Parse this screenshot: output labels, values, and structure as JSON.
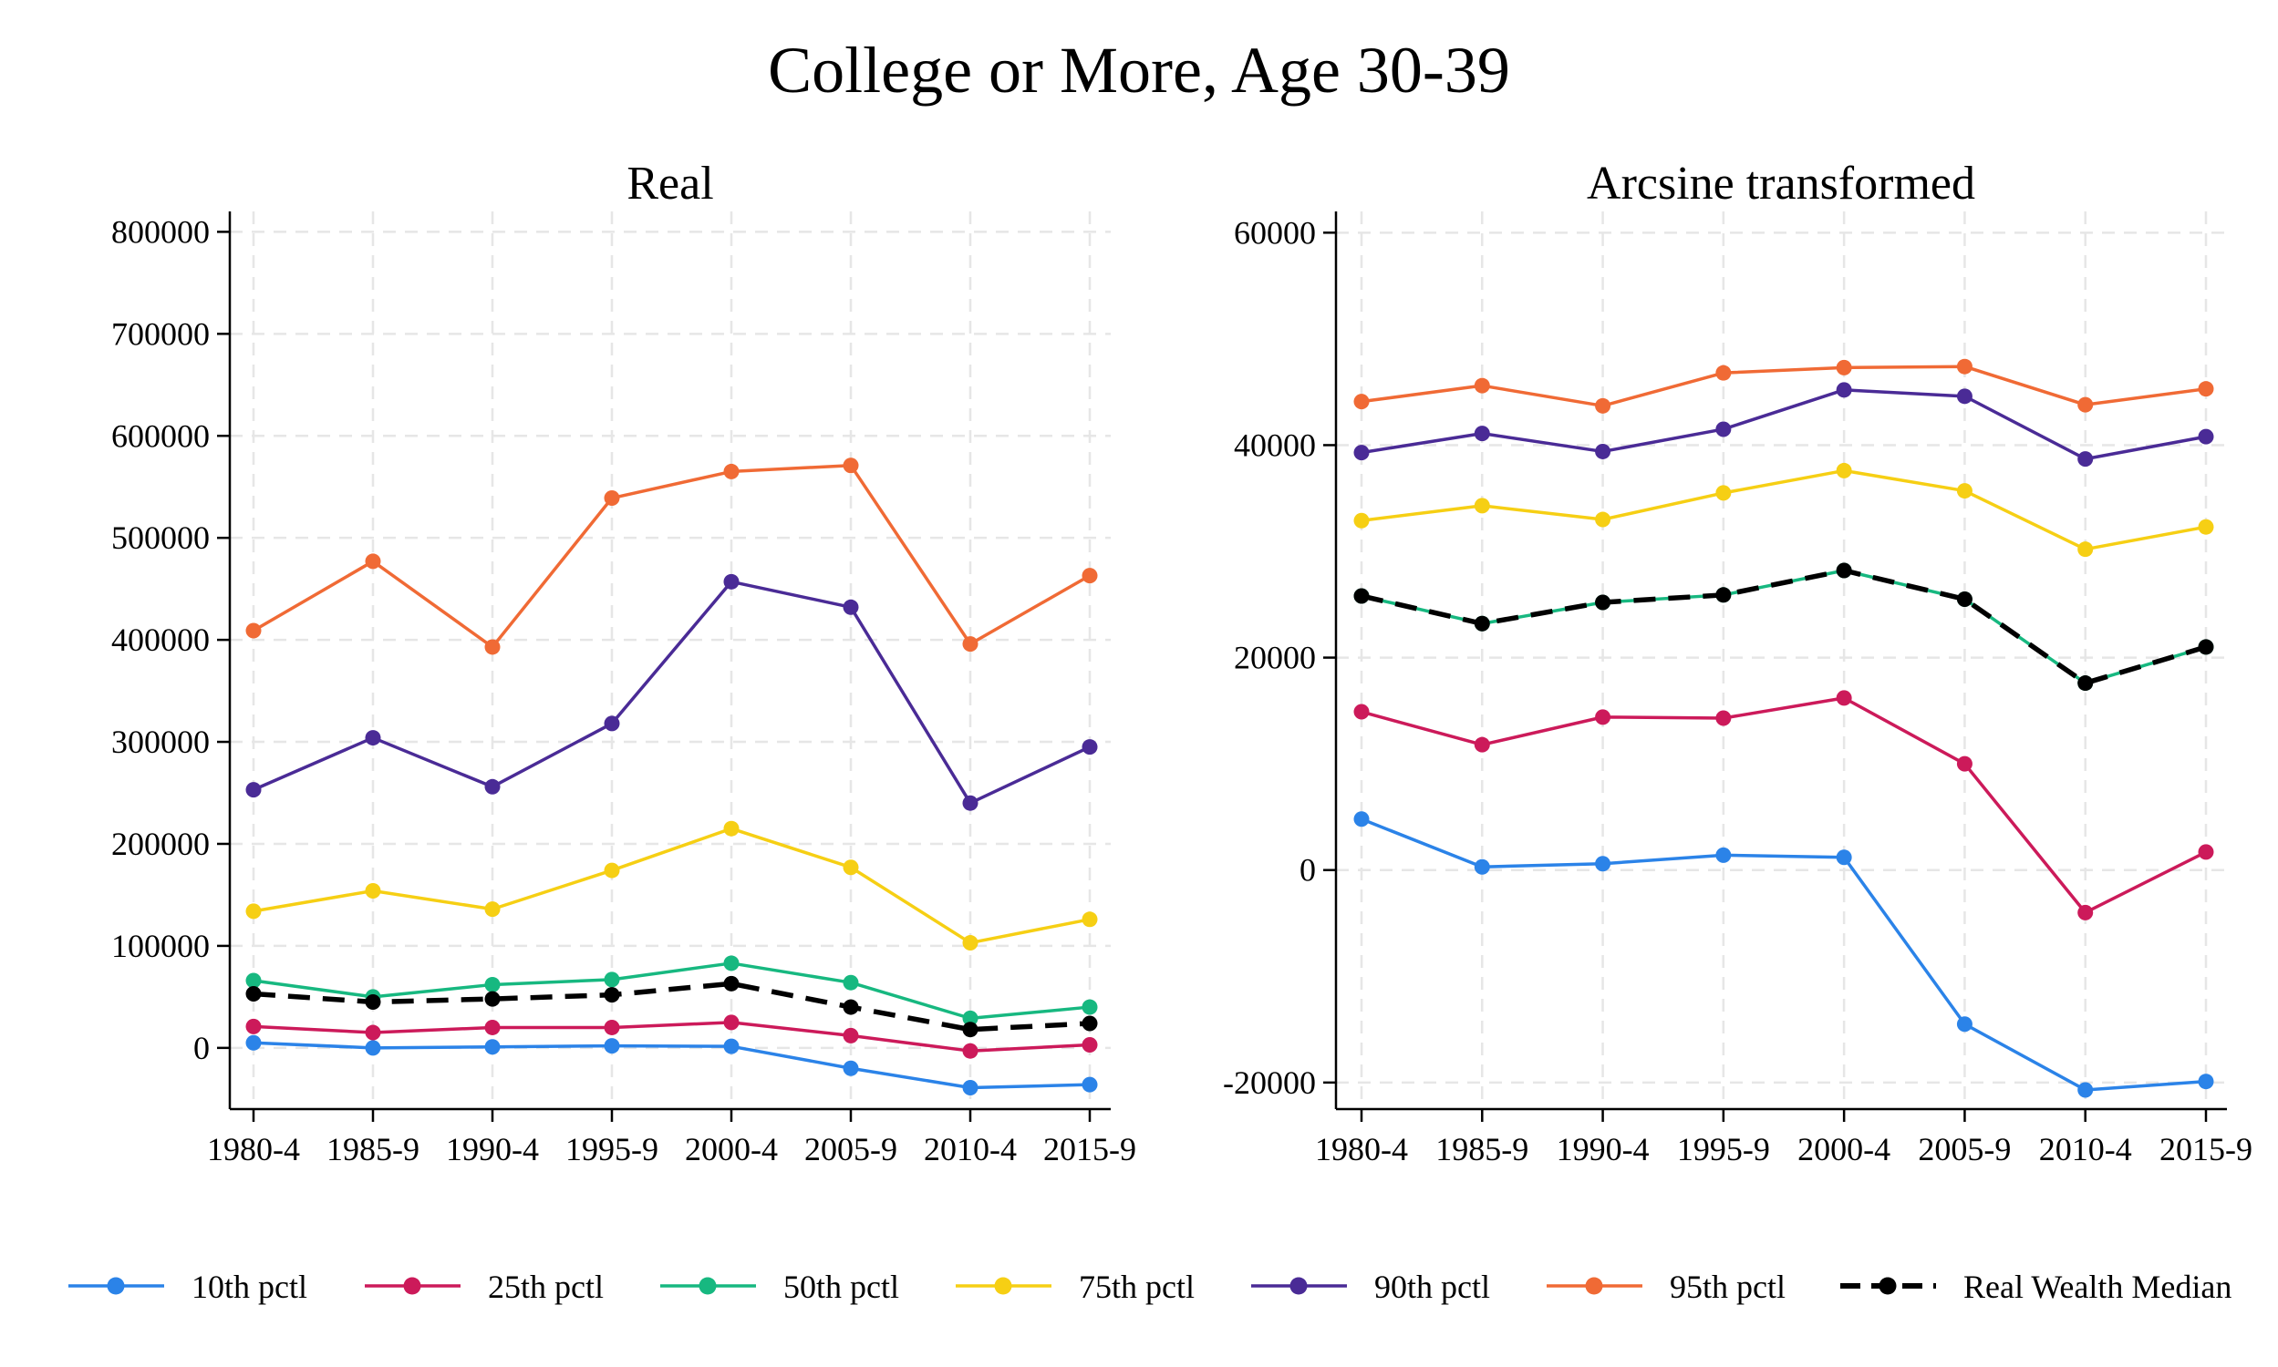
{
  "title": "College or More, Age 30-39",
  "chart_data": [
    {
      "type": "line",
      "title": "Real",
      "x": [
        "1980-4",
        "1985-9",
        "1990-4",
        "1995-9",
        "2000-4",
        "2005-9",
        "2010-4",
        "2015-9"
      ],
      "ylim": [
        -60000,
        820000
      ],
      "yticks": [
        0,
        100000,
        200000,
        300000,
        400000,
        500000,
        600000,
        700000,
        800000
      ],
      "ytick_labels": [
        "0",
        "100000",
        "200000",
        "300000",
        "400000",
        "500000",
        "600000",
        "700000",
        "800000"
      ],
      "grid": true,
      "series": [
        {
          "name": "10th pctl",
          "color": "#2b83e8",
          "dash": false,
          "values": [
            5000,
            0,
            1000,
            2000,
            1500,
            -20000,
            -39000,
            -36000
          ]
        },
        {
          "name": "25th pctl",
          "color": "#cc1a5a",
          "dash": false,
          "values": [
            21000,
            15000,
            20000,
            20000,
            25000,
            12000,
            -3000,
            3000
          ]
        },
        {
          "name": "50th pctl",
          "color": "#17b880",
          "dash": false,
          "values": [
            66000,
            50000,
            62000,
            67000,
            83000,
            64000,
            29000,
            40000
          ]
        },
        {
          "name": "75th pctl",
          "color": "#f6cf14",
          "dash": false,
          "values": [
            134000,
            154000,
            136000,
            174000,
            215000,
            177000,
            103000,
            126000
          ]
        },
        {
          "name": "90th pctl",
          "color": "#4a2b96",
          "dash": false,
          "values": [
            253000,
            304000,
            256000,
            318000,
            457000,
            432000,
            240000,
            295000
          ]
        },
        {
          "name": "95th pctl",
          "color": "#f06a35",
          "dash": false,
          "values": [
            409000,
            477000,
            393000,
            539000,
            565000,
            571000,
            396000,
            463000
          ]
        },
        {
          "name": "Real Wealth Median",
          "color": "#000000",
          "dash": true,
          "values": [
            53000,
            45000,
            48000,
            52000,
            63000,
            40000,
            18000,
            24000
          ]
        }
      ]
    },
    {
      "type": "line",
      "title": "Arcsine transformed",
      "x": [
        "1980-4",
        "1985-9",
        "1990-4",
        "1995-9",
        "2000-4",
        "2005-9",
        "2010-4",
        "2015-9"
      ],
      "ylim": [
        -22500,
        62000
      ],
      "yticks": [
        -20000,
        0,
        20000,
        40000,
        60000
      ],
      "ytick_labels": [
        "-20000",
        "0",
        "20000",
        "40000",
        "60000"
      ],
      "grid": true,
      "series": [
        {
          "name": "10th pctl",
          "color": "#2b83e8",
          "dash": false,
          "values": [
            4800,
            300,
            600,
            1400,
            1200,
            -14500,
            -20700,
            -19900
          ]
        },
        {
          "name": "25th pctl",
          "color": "#cc1a5a",
          "dash": false,
          "values": [
            14900,
            11800,
            14400,
            14300,
            16200,
            10000,
            -4000,
            1700
          ]
        },
        {
          "name": "50th pctl",
          "color": "#17b880",
          "dash": false,
          "values": [
            25800,
            23200,
            25200,
            25900,
            28200,
            25500,
            17600,
            21000
          ]
        },
        {
          "name": "75th pctl",
          "color": "#f6cf14",
          "dash": false,
          "values": [
            32900,
            34300,
            33000,
            35500,
            37600,
            35700,
            30200,
            32300
          ]
        },
        {
          "name": "90th pctl",
          "color": "#4a2b96",
          "dash": false,
          "values": [
            39300,
            41100,
            39400,
            41500,
            45200,
            44600,
            38700,
            40800
          ]
        },
        {
          "name": "95th pctl",
          "color": "#f06a35",
          "dash": false,
          "values": [
            44100,
            45600,
            43700,
            46800,
            47300,
            47400,
            43800,
            45300
          ]
        },
        {
          "name": "Real Wealth Median",
          "color": "#000000",
          "dash": true,
          "values": [
            25800,
            23200,
            25200,
            25900,
            28200,
            25500,
            17600,
            21000
          ]
        }
      ]
    }
  ],
  "legend": {
    "placement": "bottom",
    "items": [
      {
        "label": "10th pctl",
        "color": "#2b83e8",
        "dash": false
      },
      {
        "label": "25th pctl",
        "color": "#cc1a5a",
        "dash": false
      },
      {
        "label": "50th pctl",
        "color": "#17b880",
        "dash": false
      },
      {
        "label": "75th pctl",
        "color": "#f6cf14",
        "dash": false
      },
      {
        "label": "90th pctl",
        "color": "#4a2b96",
        "dash": false
      },
      {
        "label": "95th pctl",
        "color": "#f06a35",
        "dash": false
      },
      {
        "label": "Real Wealth Median",
        "color": "#000000",
        "dash": true
      }
    ]
  }
}
